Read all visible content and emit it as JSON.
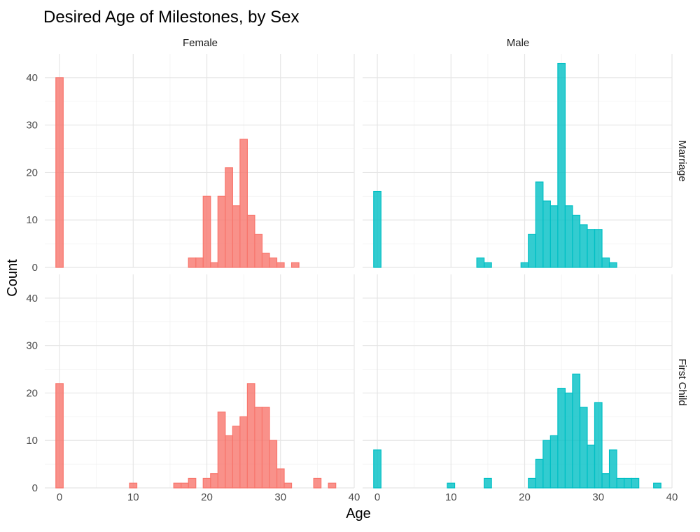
{
  "chart_data": {
    "type": "bar",
    "title": "Desired Age of Milestones, by Sex",
    "xlabel": "Age",
    "ylabel": "Count",
    "xlim": [
      -2,
      40
    ],
    "ylim": [
      0,
      45
    ],
    "x_ticks": [
      0,
      10,
      20,
      30,
      40
    ],
    "y_ticks": [
      0,
      10,
      20,
      30,
      40
    ],
    "bin_width": 1,
    "grid": true,
    "colors": {
      "Female": "#F8766D",
      "Male": "#00BFC4"
    },
    "columns": [
      "Female",
      "Male"
    ],
    "rows": [
      "Marriage",
      "First Child"
    ],
    "panels": [
      {
        "sex": "Female",
        "milestone": "Marriage",
        "bins": [
          {
            "x": 0,
            "count": 40
          },
          {
            "x": 18,
            "count": 2
          },
          {
            "x": 19,
            "count": 2
          },
          {
            "x": 20,
            "count": 15
          },
          {
            "x": 21,
            "count": 1
          },
          {
            "x": 22,
            "count": 15
          },
          {
            "x": 23,
            "count": 21
          },
          {
            "x": 24,
            "count": 13
          },
          {
            "x": 25,
            "count": 27
          },
          {
            "x": 26,
            "count": 11
          },
          {
            "x": 27,
            "count": 7
          },
          {
            "x": 28,
            "count": 3
          },
          {
            "x": 29,
            "count": 2
          },
          {
            "x": 30,
            "count": 1
          },
          {
            "x": 32,
            "count": 1
          }
        ]
      },
      {
        "sex": "Male",
        "milestone": "Marriage",
        "bins": [
          {
            "x": 0,
            "count": 16
          },
          {
            "x": 14,
            "count": 2
          },
          {
            "x": 15,
            "count": 1
          },
          {
            "x": 20,
            "count": 1
          },
          {
            "x": 21,
            "count": 7
          },
          {
            "x": 22,
            "count": 18
          },
          {
            "x": 23,
            "count": 14
          },
          {
            "x": 24,
            "count": 13
          },
          {
            "x": 25,
            "count": 43
          },
          {
            "x": 26,
            "count": 13
          },
          {
            "x": 27,
            "count": 11
          },
          {
            "x": 28,
            "count": 9
          },
          {
            "x": 29,
            "count": 8
          },
          {
            "x": 30,
            "count": 8
          },
          {
            "x": 31,
            "count": 2
          },
          {
            "x": 32,
            "count": 1
          }
        ]
      },
      {
        "sex": "Female",
        "milestone": "First Child",
        "bins": [
          {
            "x": 0,
            "count": 22
          },
          {
            "x": 10,
            "count": 1
          },
          {
            "x": 16,
            "count": 1
          },
          {
            "x": 17,
            "count": 1
          },
          {
            "x": 18,
            "count": 2
          },
          {
            "x": 20,
            "count": 2
          },
          {
            "x": 21,
            "count": 3
          },
          {
            "x": 22,
            "count": 16
          },
          {
            "x": 23,
            "count": 11
          },
          {
            "x": 24,
            "count": 13
          },
          {
            "x": 25,
            "count": 15
          },
          {
            "x": 26,
            "count": 22
          },
          {
            "x": 27,
            "count": 17
          },
          {
            "x": 28,
            "count": 17
          },
          {
            "x": 29,
            "count": 10
          },
          {
            "x": 30,
            "count": 4
          },
          {
            "x": 31,
            "count": 1
          },
          {
            "x": 35,
            "count": 2
          },
          {
            "x": 37,
            "count": 1
          }
        ]
      },
      {
        "sex": "Male",
        "milestone": "First Child",
        "bins": [
          {
            "x": 0,
            "count": 8
          },
          {
            "x": 10,
            "count": 1
          },
          {
            "x": 15,
            "count": 2
          },
          {
            "x": 21,
            "count": 2
          },
          {
            "x": 22,
            "count": 6
          },
          {
            "x": 23,
            "count": 10
          },
          {
            "x": 24,
            "count": 11
          },
          {
            "x": 25,
            "count": 21
          },
          {
            "x": 26,
            "count": 20
          },
          {
            "x": 27,
            "count": 24
          },
          {
            "x": 28,
            "count": 17
          },
          {
            "x": 29,
            "count": 9
          },
          {
            "x": 30,
            "count": 18
          },
          {
            "x": 31,
            "count": 3
          },
          {
            "x": 32,
            "count": 8
          },
          {
            "x": 33,
            "count": 2
          },
          {
            "x": 34,
            "count": 2
          },
          {
            "x": 35,
            "count": 2
          },
          {
            "x": 38,
            "count": 1
          }
        ]
      }
    ]
  }
}
